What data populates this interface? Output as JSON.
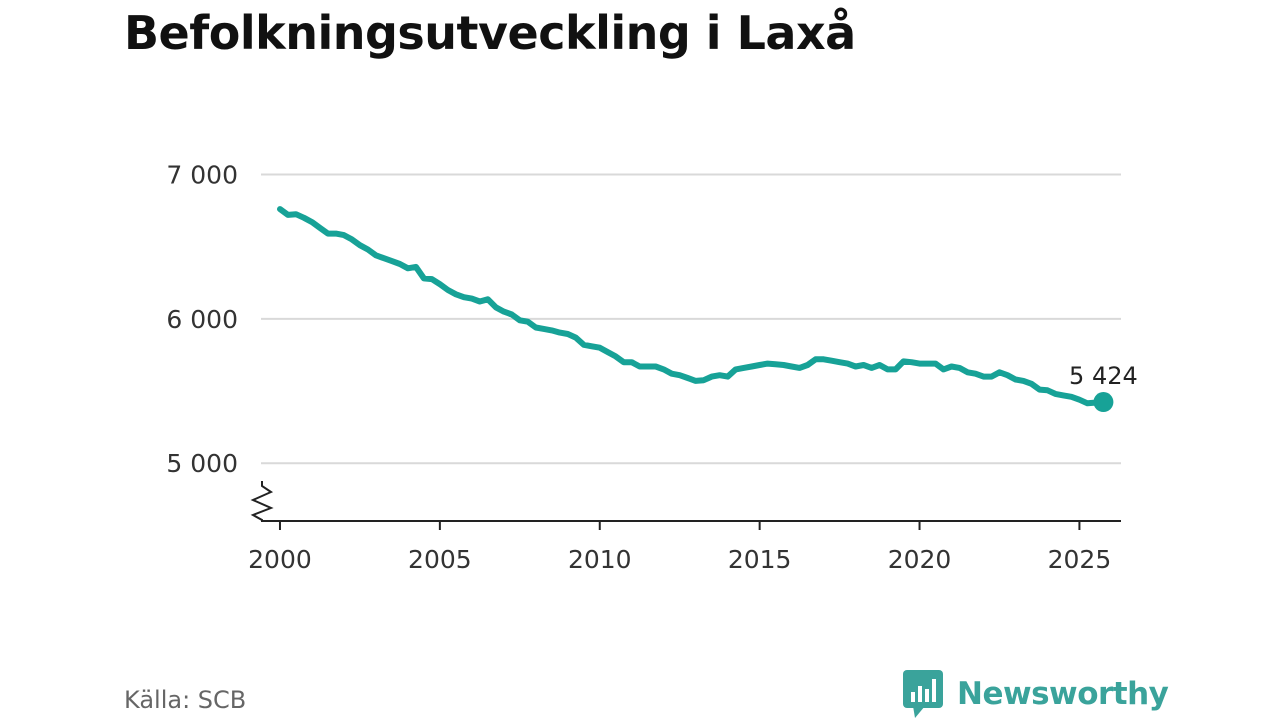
{
  "title": "Befolkningsutveckling i Laxå",
  "source": "Källa: SCB",
  "brand": {
    "name": "Newsworthy",
    "icon": "newsworthy-logo-icon",
    "color": "#3aa39b"
  },
  "chart_data": {
    "type": "line",
    "title": "Befolkningsutveckling i Laxå",
    "xlabel": "",
    "ylabel": "",
    "xlim": [
      1999,
      2026.3
    ],
    "ylim": [
      4600,
      7100
    ],
    "y_axis_break": true,
    "grid": "horizontal",
    "line_color": "#17a297",
    "x_ticks": [
      {
        "value": 2000,
        "label": "2000"
      },
      {
        "value": 2005,
        "label": "2005"
      },
      {
        "value": 2010,
        "label": "2010"
      },
      {
        "value": 2015,
        "label": "2015"
      },
      {
        "value": 2020,
        "label": "2020"
      },
      {
        "value": 2025,
        "label": "2025"
      }
    ],
    "y_ticks": [
      {
        "value": 5000,
        "label": "5 000"
      },
      {
        "value": 6000,
        "label": "6 000"
      },
      {
        "value": 7000,
        "label": "7 000"
      }
    ],
    "last_value_label": "5 424",
    "series": [
      {
        "x": [
          2000.0,
          2000.25,
          2000.5,
          2000.75,
          2001.0,
          2001.25,
          2001.5,
          2001.75,
          2002.0,
          2002.25,
          2002.5,
          2002.75,
          2003.0,
          2003.25,
          2003.5,
          2003.75,
          2004.0,
          2004.25,
          2004.5,
          2004.75,
          2005.0,
          2005.25,
          2005.5,
          2005.75,
          2006.0,
          2006.25,
          2006.5,
          2006.75,
          2007.0,
          2007.25,
          2007.5,
          2007.75,
          2008.0,
          2008.25,
          2008.5,
          2008.75,
          2009.0,
          2009.25,
          2009.5,
          2009.75,
          2010.0,
          2010.25,
          2010.5,
          2010.75,
          2011.0,
          2011.25,
          2011.5,
          2011.75,
          2012.0,
          2012.25,
          2012.5,
          2012.75,
          2013.0,
          2013.25,
          2013.5,
          2013.75,
          2014.0,
          2014.25,
          2014.5,
          2014.75,
          2015.0,
          2015.25,
          2015.5,
          2015.75,
          2016.0,
          2016.25,
          2016.5,
          2016.75,
          2017.0,
          2017.25,
          2017.5,
          2017.75,
          2018.0,
          2018.25,
          2018.5,
          2018.75,
          2019.0,
          2019.25,
          2019.5,
          2019.75,
          2020.0,
          2020.25,
          2020.5,
          2020.75,
          2021.0,
          2021.25,
          2021.5,
          2021.75,
          2022.0,
          2022.25,
          2022.5,
          2022.75,
          2023.0,
          2023.25,
          2023.5,
          2023.75,
          2024.0,
          2024.25,
          2024.5,
          2024.75,
          2025.0,
          2025.25,
          2025.5,
          2025.75
        ],
        "values": [
          6760,
          6720,
          6725,
          6700,
          6670,
          6630,
          6590,
          6590,
          6580,
          6550,
          6510,
          6480,
          6440,
          6420,
          6400,
          6380,
          6350,
          6360,
          6280,
          6275,
          6240,
          6200,
          6170,
          6150,
          6140,
          6120,
          6135,
          6080,
          6050,
          6030,
          5990,
          5980,
          5940,
          5930,
          5920,
          5905,
          5895,
          5870,
          5820,
          5810,
          5800,
          5770,
          5740,
          5700,
          5700,
          5670,
          5670,
          5670,
          5650,
          5620,
          5610,
          5590,
          5570,
          5575,
          5600,
          5610,
          5600,
          5650,
          5660,
          5670,
          5680,
          5690,
          5685,
          5680,
          5670,
          5660,
          5680,
          5720,
          5720,
          5710,
          5700,
          5690,
          5670,
          5680,
          5660,
          5680,
          5650,
          5650,
          5705,
          5700,
          5690,
          5690,
          5690,
          5650,
          5670,
          5660,
          5630,
          5620,
          5600,
          5600,
          5630,
          5610,
          5580,
          5570,
          5550,
          5510,
          5505,
          5480,
          5470,
          5460,
          5440,
          5415,
          5420,
          5424
        ]
      }
    ]
  }
}
